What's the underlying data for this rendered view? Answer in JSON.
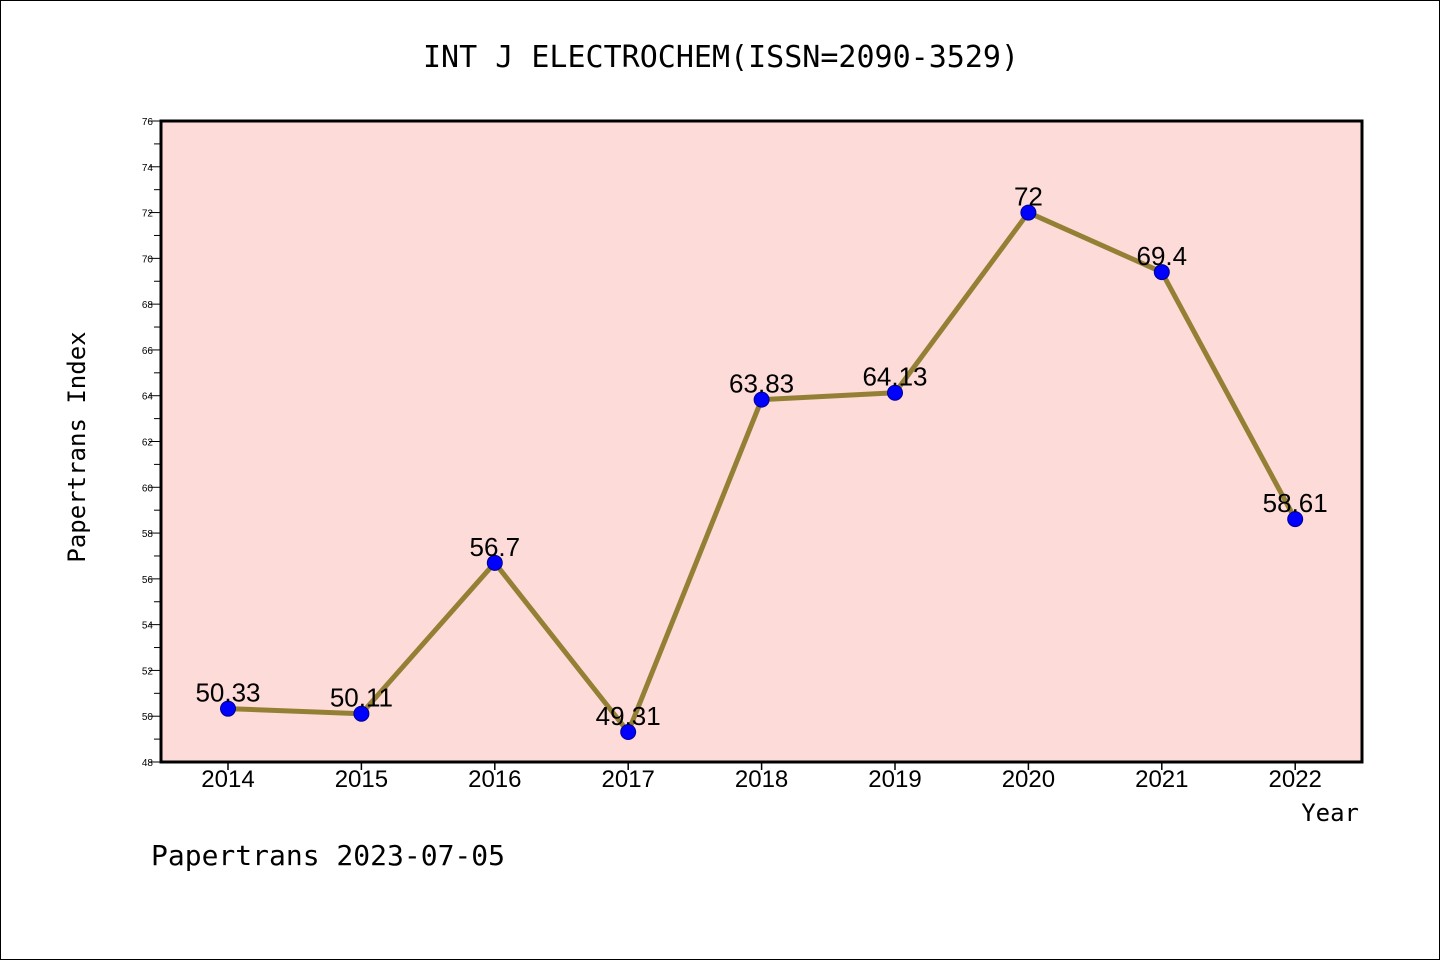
{
  "chart_data": {
    "type": "line",
    "title": "INT J ELECTROCHEM(ISSN=2090-3529)",
    "xlabel": "Year",
    "ylabel": "Papertrans Index",
    "categories": [
      "2014",
      "2015",
      "2016",
      "2017",
      "2018",
      "2019",
      "2020",
      "2021",
      "2022"
    ],
    "values": [
      50.33,
      50.11,
      56.7,
      49.31,
      63.83,
      64.13,
      72,
      69.4,
      58.61
    ],
    "data_labels": [
      "50.33",
      "50.11",
      "56.7",
      "49.31",
      "63.83",
      "64.13",
      "72",
      "69.4",
      "58.61"
    ],
    "ylim": [
      48,
      76
    ],
    "yticks": [
      48,
      50,
      52,
      54,
      56,
      58,
      60,
      62,
      64,
      66,
      68,
      70,
      72,
      74,
      76
    ],
    "grid": false,
    "colors": {
      "plot_background": "#fddbd8",
      "line": "#948035",
      "marker": "#0000ff"
    }
  },
  "footer": "Papertrans 2023-07-05"
}
